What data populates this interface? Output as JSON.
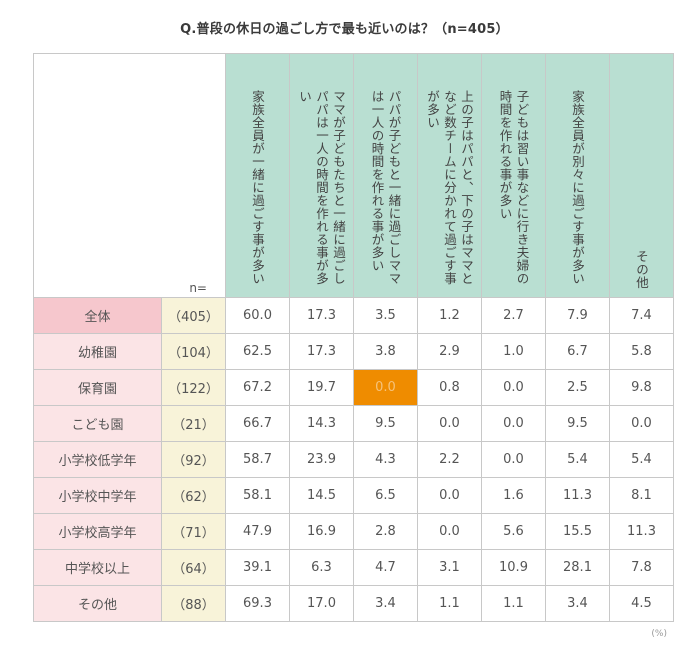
{
  "title": "Q.普段の休日の過ごし方で最も近いのは？（n=405）",
  "n_label": "n=",
  "unit": "(%)",
  "highlight_color": "#ef8c00",
  "chart_data": {
    "type": "table",
    "columns": [
      "家族全員が一緒に過ごす事が多い",
      "ママが子どもたちと一緒に過ごしパパは一人の時間を作れる事が多い",
      "パパが子どもと一緒に過ごしママは一人の時間を作れる事が多い",
      "上の子はパパと、下の子はママとなど数チームに分かれて過ごす事が多い",
      "子どもは習い事などに行き夫婦の時間を作れる事が多い",
      "家族全員が別々に過ごす事が多い",
      "その他"
    ],
    "rows": [
      {
        "label": "全体",
        "n": "（405）",
        "values": [
          "60.0",
          "17.3",
          "3.5",
          "1.2",
          "2.7",
          "7.9",
          "7.4"
        ]
      },
      {
        "label": "幼稚園",
        "n": "（104）",
        "values": [
          "62.5",
          "17.3",
          "3.8",
          "2.9",
          "1.0",
          "6.7",
          "5.8"
        ]
      },
      {
        "label": "保育園",
        "n": "（122）",
        "values": [
          "67.2",
          "19.7",
          "0.0",
          "0.8",
          "0.0",
          "2.5",
          "9.8"
        ]
      },
      {
        "label": "こども園",
        "n": "（21）",
        "values": [
          "66.7",
          "14.3",
          "9.5",
          "0.0",
          "0.0",
          "9.5",
          "0.0"
        ]
      },
      {
        "label": "小学校低学年",
        "n": "（92）",
        "values": [
          "58.7",
          "23.9",
          "4.3",
          "2.2",
          "0.0",
          "5.4",
          "5.4"
        ]
      },
      {
        "label": "小学校中学年",
        "n": "（62）",
        "values": [
          "58.1",
          "14.5",
          "6.5",
          "0.0",
          "1.6",
          "11.3",
          "8.1"
        ]
      },
      {
        "label": "小学校高学年",
        "n": "（71）",
        "values": [
          "47.9",
          "16.9",
          "2.8",
          "0.0",
          "5.6",
          "15.5",
          "11.3"
        ]
      },
      {
        "label": "中学校以上",
        "n": "（64）",
        "values": [
          "39.1",
          "6.3",
          "4.7",
          "3.1",
          "10.9",
          "28.1",
          "7.8"
        ]
      },
      {
        "label": "その他",
        "n": "（88）",
        "values": [
          "69.3",
          "17.0",
          "3.4",
          "1.1",
          "1.1",
          "3.4",
          "4.5"
        ]
      }
    ],
    "highlighted_cell": {
      "row": 2,
      "col": 2
    }
  }
}
